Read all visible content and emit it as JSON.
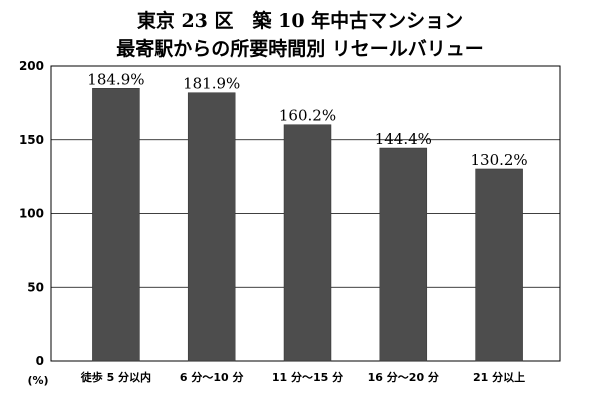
{
  "chart_data": {
    "type": "bar",
    "title_line1": "東京 23 区　築 10 年中古マンション",
    "title_line2": "最寄駅からの所要時間別 リセールバリュー",
    "categories": [
      "徒歩 5 分以内",
      "6 分～10 分",
      "11 分～15 分",
      "16 分～20 分",
      "21 分以上"
    ],
    "values": [
      184.9,
      181.9,
      160.2,
      144.4,
      130.2
    ],
    "data_labels": [
      "184.9%",
      "181.9%",
      "160.2%",
      "144.4%",
      "130.2%"
    ],
    "yticks": [
      "0",
      "50",
      "100",
      "150",
      "200"
    ],
    "ylim": [
      0,
      200
    ],
    "ylabel_unit": "(%)",
    "bar_color": "#4d4d4d",
    "grid": true,
    "legend": false
  }
}
